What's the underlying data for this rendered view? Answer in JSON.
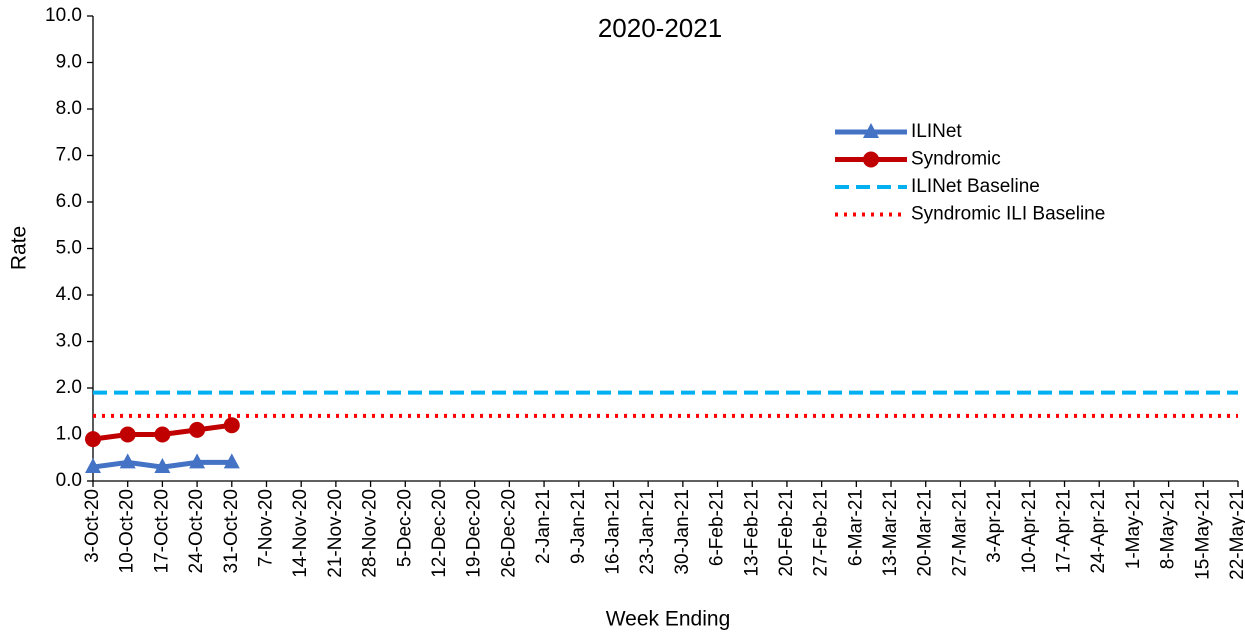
{
  "chart_data": {
    "type": "line",
    "title": "2020-2021",
    "x_label": "Week Ending",
    "y_label": "Rate",
    "categories": [
      "3-Oct-20",
      "10-Oct-20",
      "17-Oct-20",
      "24-Oct-20",
      "31-Oct-20",
      "7-Nov-20",
      "14-Nov-20",
      "21-Nov-20",
      "28-Nov-20",
      "5-Dec-20",
      "12-Dec-20",
      "19-Dec-20",
      "26-Dec-20",
      "2-Jan-21",
      "9-Jan-21",
      "16-Jan-21",
      "23-Jan-21",
      "30-Jan-21",
      "6-Feb-21",
      "13-Feb-21",
      "20-Feb-21",
      "27-Feb-21",
      "6-Mar-21",
      "13-Mar-21",
      "20-Mar-21",
      "27-Mar-21",
      "3-Apr-21",
      "10-Apr-21",
      "17-Apr-21",
      "24-Apr-21",
      "1-May-21",
      "8-May-21",
      "15-May-21",
      "22-May-21"
    ],
    "series": [
      {
        "name": "ILINet",
        "color": "#4472c4",
        "dash": "solid",
        "marker": "triangle",
        "values": [
          0.3,
          0.4,
          0.3,
          0.4,
          0.4,
          null,
          null,
          null,
          null,
          null,
          null,
          null,
          null,
          null,
          null,
          null,
          null,
          null,
          null,
          null,
          null,
          null,
          null,
          null,
          null,
          null,
          null,
          null,
          null,
          null,
          null,
          null,
          null,
          null
        ]
      },
      {
        "name": "Syndromic",
        "color": "#c00000",
        "dash": "solid",
        "marker": "circle",
        "values": [
          0.9,
          1.0,
          1.0,
          1.1,
          1.2,
          null,
          null,
          null,
          null,
          null,
          null,
          null,
          null,
          null,
          null,
          null,
          null,
          null,
          null,
          null,
          null,
          null,
          null,
          null,
          null,
          null,
          null,
          null,
          null,
          null,
          null,
          null,
          null,
          null
        ]
      },
      {
        "name": "ILINet Baseline",
        "color": "#00b0f0",
        "dash": "dashed",
        "marker": "none",
        "values": [
          1.9,
          1.9,
          1.9,
          1.9,
          1.9,
          1.9,
          1.9,
          1.9,
          1.9,
          1.9,
          1.9,
          1.9,
          1.9,
          1.9,
          1.9,
          1.9,
          1.9,
          1.9,
          1.9,
          1.9,
          1.9,
          1.9,
          1.9,
          1.9,
          1.9,
          1.9,
          1.9,
          1.9,
          1.9,
          1.9,
          1.9,
          1.9,
          1.9,
          1.9
        ]
      },
      {
        "name": "Syndromic ILI Baseline",
        "color": "#ff0000",
        "dash": "dotted",
        "marker": "none",
        "values": [
          1.4,
          1.4,
          1.4,
          1.4,
          1.4,
          1.4,
          1.4,
          1.4,
          1.4,
          1.4,
          1.4,
          1.4,
          1.4,
          1.4,
          1.4,
          1.4,
          1.4,
          1.4,
          1.4,
          1.4,
          1.4,
          1.4,
          1.4,
          1.4,
          1.4,
          1.4,
          1.4,
          1.4,
          1.4,
          1.4,
          1.4,
          1.4,
          1.4,
          1.4
        ]
      }
    ],
    "ylim": [
      0,
      10
    ],
    "yticks": [
      {
        "value": 0,
        "label": "0.0"
      },
      {
        "value": 1,
        "label": "1.0"
      },
      {
        "value": 2,
        "label": "2.0"
      },
      {
        "value": 3,
        "label": "3.0"
      },
      {
        "value": 4,
        "label": "4.0"
      },
      {
        "value": 5,
        "label": "5.0"
      },
      {
        "value": 6,
        "label": "6.0"
      },
      {
        "value": 7,
        "label": "7.0"
      },
      {
        "value": 8,
        "label": "8.0"
      },
      {
        "value": 9,
        "label": "9.0"
      },
      {
        "value": 10,
        "label": "10.0"
      }
    ],
    "grid": false,
    "legend": "upper-right"
  }
}
